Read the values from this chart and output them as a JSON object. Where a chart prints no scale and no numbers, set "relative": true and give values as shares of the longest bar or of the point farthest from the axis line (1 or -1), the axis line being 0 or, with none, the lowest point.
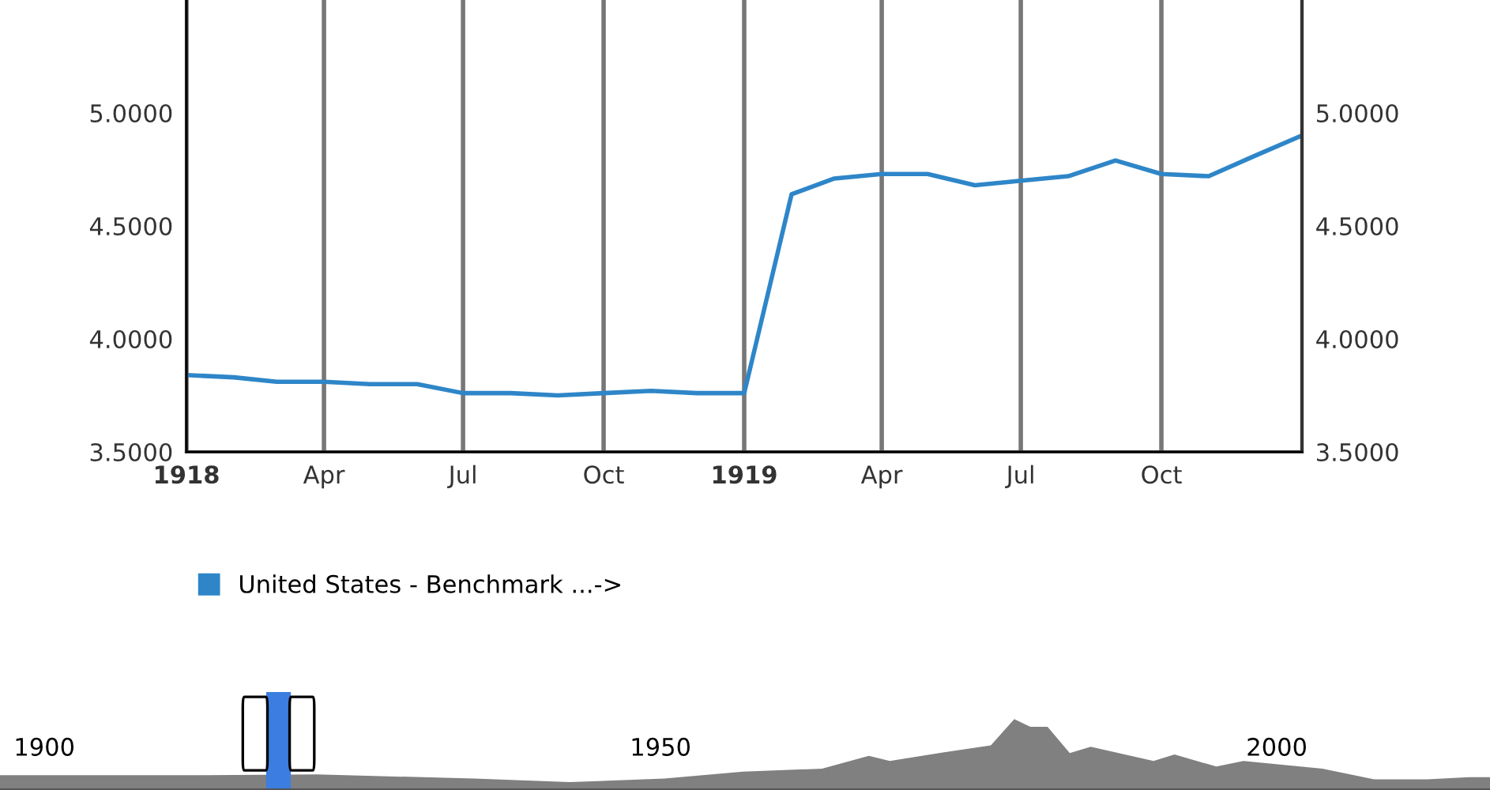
{
  "chart_data": [
    {
      "type": "line",
      "x": [
        "1918-01",
        "1918-02",
        "1918-03",
        "1918-04",
        "1918-05",
        "1918-06",
        "1918-07",
        "1918-08",
        "1918-09",
        "1918-10",
        "1918-11",
        "1918-12",
        "1919-01",
        "1919-02",
        "1919-03",
        "1919-04",
        "1919-05",
        "1919-06",
        "1919-07",
        "1919-08",
        "1919-09",
        "1919-10",
        "1919-11",
        "1919-12",
        "1920-01"
      ],
      "series": [
        {
          "name": "United States - Benchmark ...->",
          "color": "#2e86c8",
          "values": [
            3.84,
            3.83,
            3.81,
            3.81,
            3.8,
            3.8,
            3.76,
            3.76,
            3.75,
            3.76,
            3.77,
            3.76,
            3.76,
            4.64,
            4.71,
            4.73,
            4.73,
            4.68,
            4.7,
            4.72,
            4.79,
            4.73,
            4.72,
            4.81,
            4.9
          ]
        }
      ],
      "xlim": [
        "1918-01",
        "1920-01"
      ],
      "xticks": [
        {
          "value": "1918-01",
          "label": "1918"
        },
        {
          "value": "1918-04",
          "label": "Apr"
        },
        {
          "value": "1918-07",
          "label": "Jul"
        },
        {
          "value": "1918-10",
          "label": "Oct"
        },
        {
          "value": "1919-01",
          "label": "1919"
        },
        {
          "value": "1919-04",
          "label": "Apr"
        },
        {
          "value": "1919-07",
          "label": "Jul"
        },
        {
          "value": "1919-10",
          "label": "Oct"
        }
      ],
      "ylim": [
        3.5,
        5.5
      ],
      "yticks": [
        {
          "value": 3.5,
          "label": "3.5000"
        },
        {
          "value": 4.0,
          "label": "4.0000"
        },
        {
          "value": 4.5,
          "label": "4.5000"
        },
        {
          "value": 5.0,
          "label": "5.0000"
        }
      ],
      "y2lim": [
        3.5,
        5.5
      ],
      "y2ticks": [
        {
          "value": 3.5,
          "label": "3.5000"
        },
        {
          "value": 4.0,
          "label": "4.0000"
        },
        {
          "value": 4.5,
          "label": "4.5000"
        },
        {
          "value": 5.0,
          "label": "5.0000"
        }
      ],
      "grid": "x",
      "legend": "bottom"
    },
    {
      "type": "area",
      "relative": true,
      "x": [
        1896.4,
        1913.1,
        1922.1,
        1934.9,
        1942.6,
        1950.3,
        1956.7,
        1963.1,
        1966.9,
        1968.6,
        1972.9,
        1976.8,
        1978.7,
        1980.0,
        1981.4,
        1983.2,
        1984.9,
        1990.0,
        1991.7,
        1995.1,
        1997.3,
        2003.7,
        2007.9,
        2012.2,
        2015.6,
        2017.3
      ],
      "series": [
        {
          "color": "#808080",
          "values": [
            0.21,
            0.21,
            0.22,
            0.16,
            0.11,
            0.16,
            0.26,
            0.3,
            0.48,
            0.41,
            0.53,
            0.63,
            1.0,
            0.89,
            0.89,
            0.52,
            0.61,
            0.41,
            0.5,
            0.33,
            0.41,
            0.3,
            0.15,
            0.15,
            0.18,
            0.18
          ]
        }
      ],
      "xlim": [
        1896.4,
        2017.3
      ],
      "xticks": [
        1900,
        1950,
        2000
      ],
      "bands": [
        {
          "axis": "x",
          "from": 1918,
          "to": 1920,
          "color": "#3b7de0"
        }
      ],
      "tick_labels": "x"
    }
  ]
}
